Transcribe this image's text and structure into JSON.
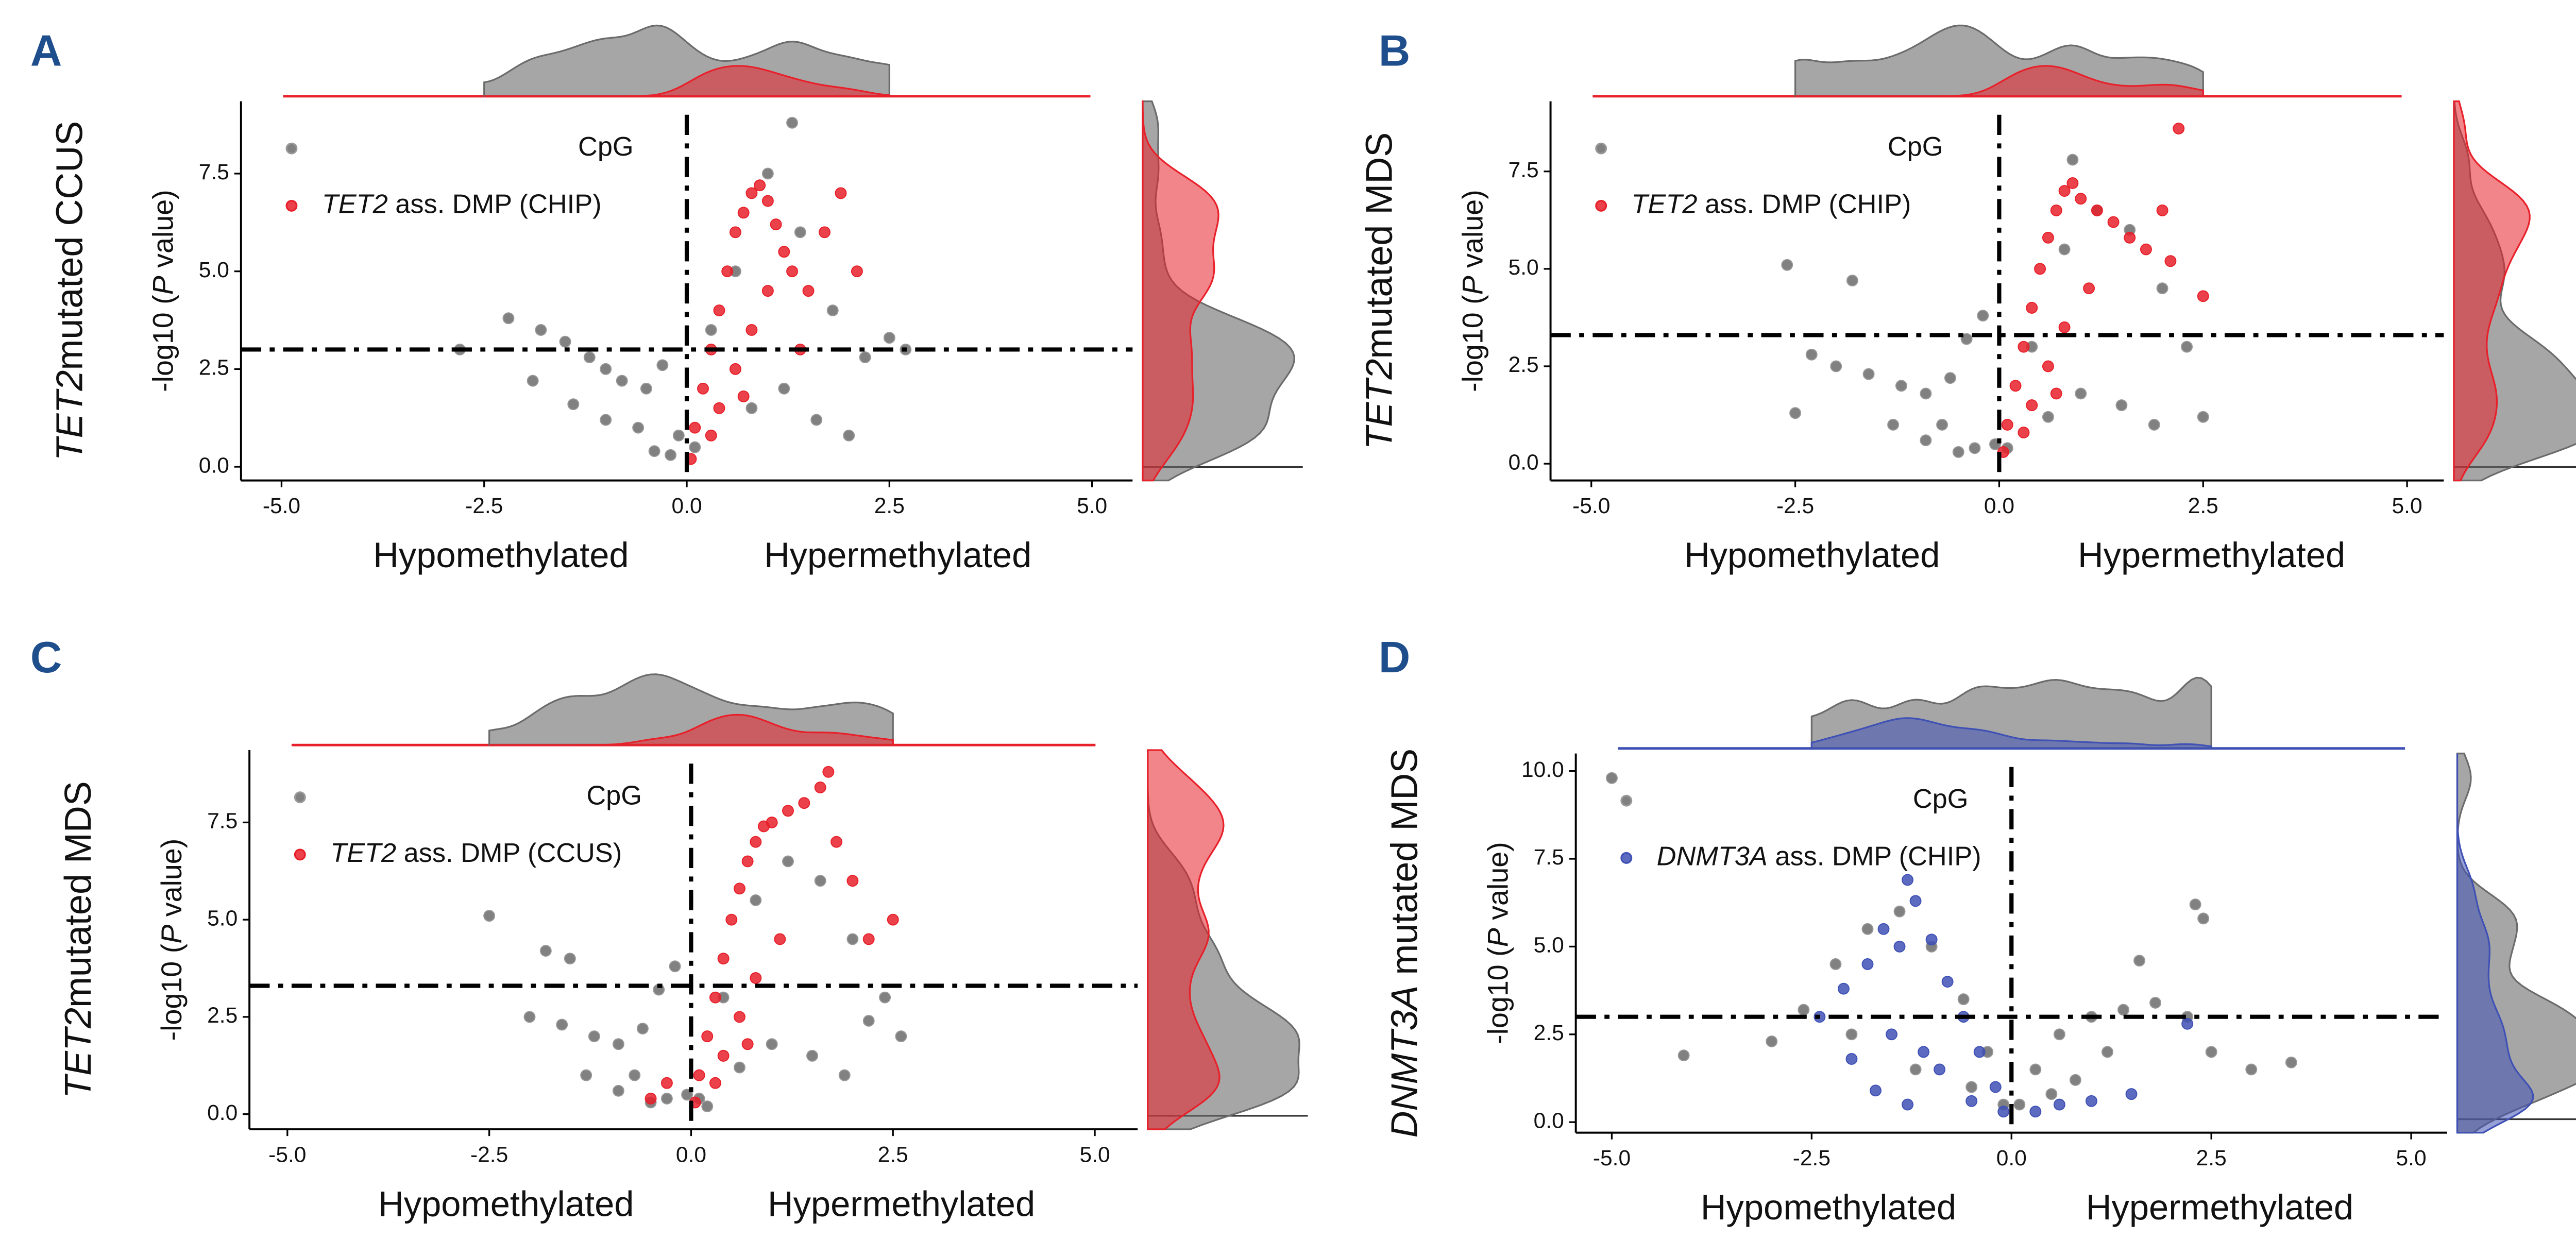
{
  "chart_data": [
    {
      "type": "scatter",
      "panel": "A",
      "row_label": "TET2mutated CCUS",
      "ylabel": "-log10 (P value)",
      "xlabel_left": "Hypomethylated",
      "xlabel_right": "Hypermethylated",
      "xlim": [
        -5.5,
        5.5
      ],
      "ylim": [
        -0.35,
        9.35
      ],
      "xticks": [
        {
          "value": -5,
          "label": "-5.0"
        },
        {
          "value": -2.5,
          "label": "-2.5"
        },
        {
          "value": 0,
          "label": "0.0"
        },
        {
          "value": 2.5,
          "label": "2.5"
        },
        {
          "value": 5,
          "label": "5.0"
        }
      ],
      "yticks": [
        {
          "value": 0,
          "label": "0.0"
        },
        {
          "value": 2.5,
          "label": "2.5"
        },
        {
          "value": 5,
          "label": "5.0"
        },
        {
          "value": 7.5,
          "label": "7.5"
        }
      ],
      "hline": 3,
      "vline": 0,
      "series": [
        {
          "name": "CpG",
          "color": "#6b6b6b",
          "x": [
            -2.2,
            -1.8,
            -1.5,
            -1.2,
            -1.0,
            -0.8,
            -0.5,
            -0.3,
            -0.1,
            0.1,
            0.3,
            0.6,
            1.0,
            1.4,
            1.8,
            2.2,
            2.5,
            -1.9,
            -2.8,
            -0.6,
            -0.2,
            0.8,
            1.2,
            1.6,
            2.0,
            -1.4,
            -1.0,
            -0.4,
            2.7,
            1.3
          ],
          "values": [
            3.8,
            3.5,
            3.2,
            2.8,
            2.5,
            2.2,
            2.0,
            2.6,
            0.8,
            0.5,
            3.5,
            5.0,
            7.5,
            6.0,
            4.0,
            2.8,
            3.3,
            2.2,
            3.0,
            1.0,
            0.3,
            1.5,
            2.0,
            1.2,
            0.8,
            1.6,
            1.2,
            0.4,
            3.0,
            8.8
          ]
        },
        {
          "name": "TET2 ass. DMP (CHIP)",
          "color": "#e8202a",
          "x": [
            0.05,
            0.1,
            0.2,
            0.3,
            0.4,
            0.5,
            0.6,
            0.7,
            0.8,
            0.9,
            1.0,
            1.1,
            1.2,
            1.3,
            1.5,
            1.7,
            1.9,
            2.1,
            0.4,
            0.6,
            0.8,
            1.0,
            1.4,
            0.3,
            0.7
          ],
          "values": [
            0.2,
            1.0,
            2.0,
            3.0,
            4.0,
            5.0,
            6.0,
            6.5,
            7.0,
            7.2,
            6.8,
            6.2,
            5.5,
            5.0,
            4.5,
            6.0,
            7.0,
            5.0,
            1.5,
            2.5,
            3.5,
            4.5,
            3.0,
            0.8,
            1.8
          ]
        }
      ]
    },
    {
      "type": "scatter",
      "panel": "B",
      "row_label": "TET2mutated MDS",
      "ylabel": "-log10 (P value)",
      "xlabel_left": "Hypomethylated",
      "xlabel_right": "Hypermethylated",
      "xlim": [
        -5.5,
        5.45
      ],
      "ylim": [
        -0.43,
        9.3
      ],
      "xticks": [
        {
          "value": -5,
          "label": "-5.0"
        },
        {
          "value": -2.5,
          "label": "-2.5"
        },
        {
          "value": 0,
          "label": "0.0"
        },
        {
          "value": 2.5,
          "label": "2.5"
        },
        {
          "value": 5,
          "label": "5.0"
        }
      ],
      "yticks": [
        {
          "value": 0,
          "label": "0.0"
        },
        {
          "value": 2.5,
          "label": "2.5"
        },
        {
          "value": 5,
          "label": "5.0"
        },
        {
          "value": 7.5,
          "label": "7.5"
        }
      ],
      "hline": 3.3,
      "vline": 0,
      "series": [
        {
          "name": "CpG",
          "color": "#6b6b6b",
          "x": [
            -2.3,
            -2.0,
            -1.6,
            -1.2,
            -0.9,
            -0.6,
            -0.4,
            -0.2,
            -0.05,
            0.1,
            0.4,
            0.8,
            1.2,
            1.6,
            2.0,
            2.3,
            -2.6,
            -1.8,
            -0.7,
            -0.3,
            0.6,
            1.0,
            1.5,
            1.9,
            2.5,
            -1.3,
            -0.9,
            -2.5,
            -0.5,
            0.9
          ],
          "values": [
            2.8,
            2.5,
            2.3,
            2.0,
            1.8,
            2.2,
            3.2,
            3.8,
            0.5,
            0.4,
            3.0,
            5.5,
            6.5,
            6.0,
            4.5,
            3.0,
            5.1,
            4.7,
            1.0,
            0.4,
            1.2,
            1.8,
            1.5,
            1.0,
            1.2,
            1.0,
            0.6,
            1.3,
            0.3,
            7.8
          ]
        },
        {
          "name": "TET2 ass. DMP (CHIP)",
          "color": "#e8202a",
          "x": [
            0.05,
            0.1,
            0.2,
            0.3,
            0.4,
            0.5,
            0.6,
            0.7,
            0.8,
            0.9,
            1.0,
            1.2,
            1.4,
            1.6,
            1.8,
            2.0,
            2.2,
            2.5,
            0.4,
            0.6,
            0.8,
            1.1,
            2.1,
            0.3,
            0.7
          ],
          "values": [
            0.3,
            1.0,
            2.0,
            3.0,
            4.0,
            5.0,
            5.8,
            6.5,
            7.0,
            7.2,
            6.8,
            6.5,
            6.2,
            5.8,
            5.5,
            6.5,
            8.6,
            4.3,
            1.5,
            2.5,
            3.5,
            4.5,
            5.2,
            0.8,
            1.8
          ]
        }
      ]
    },
    {
      "type": "scatter",
      "panel": "C",
      "row_label": "TET2mutated MDS",
      "ylabel": "-log10 (P value)",
      "xlabel_left": "Hypomethylated",
      "xlabel_right": "Hypermethylated",
      "xlim": [
        -5.47,
        5.53
      ],
      "ylim": [
        -0.39,
        9.36
      ],
      "xticks": [
        {
          "value": -5,
          "label": "-5.0"
        },
        {
          "value": -2.5,
          "label": "-2.5"
        },
        {
          "value": 0,
          "label": "0.0"
        },
        {
          "value": 2.5,
          "label": "2.5"
        },
        {
          "value": 5,
          "label": "5.0"
        }
      ],
      "yticks": [
        {
          "value": 0,
          "label": "0.0"
        },
        {
          "value": 2.5,
          "label": "2.5"
        },
        {
          "value": 5,
          "label": "5.0"
        },
        {
          "value": 7.5,
          "label": "7.5"
        }
      ],
      "hline": 3.3,
      "vline": 0,
      "series": [
        {
          "name": "CpG",
          "color": "#6b6b6b",
          "x": [
            -2.5,
            -2.0,
            -1.6,
            -1.2,
            -0.9,
            -0.6,
            -0.4,
            -0.2,
            -0.05,
            0.1,
            0.4,
            0.8,
            1.2,
            1.6,
            2.0,
            2.4,
            -1.8,
            -0.7,
            -0.3,
            0.6,
            1.0,
            1.5,
            1.9,
            2.6,
            -1.3,
            -0.9,
            -0.5,
            -1.5,
            2.2,
            0.2
          ],
          "values": [
            5.1,
            2.5,
            2.3,
            2.0,
            1.8,
            2.2,
            3.2,
            3.8,
            0.5,
            0.4,
            3.0,
            5.5,
            6.5,
            6.0,
            4.5,
            3.0,
            4.2,
            1.0,
            0.4,
            1.2,
            1.8,
            1.5,
            1.0,
            2.0,
            1.0,
            0.6,
            0.3,
            4.0,
            2.4,
            0.2
          ]
        },
        {
          "name": "TET2 ass. DMP (CCUS)",
          "color": "#e8202a",
          "x": [
            0.05,
            0.1,
            0.2,
            0.3,
            0.4,
            0.5,
            0.6,
            0.7,
            0.8,
            0.9,
            1.0,
            1.2,
            1.4,
            1.6,
            1.8,
            2.0,
            2.2,
            2.5,
            0.4,
            0.6,
            0.8,
            1.1,
            1.7,
            0.3,
            0.7,
            -0.5,
            -0.3
          ],
          "values": [
            0.3,
            1.0,
            2.0,
            3.0,
            4.0,
            5.0,
            5.8,
            6.5,
            7.0,
            7.4,
            7.5,
            7.8,
            8.0,
            8.4,
            7.0,
            6.0,
            4.5,
            5.0,
            1.5,
            2.5,
            3.5,
            4.5,
            8.8,
            0.8,
            1.8,
            0.4,
            0.8
          ]
        }
      ]
    },
    {
      "type": "scatter",
      "panel": "D",
      "row_label": "DNMT3A mutated MDS",
      "ylabel": "-log10 (P value)",
      "xlabel_left": "Hypomethylated",
      "xlabel_right": "Hypermethylated",
      "xlim": [
        -5.45,
        5.45
      ],
      "ylim": [
        -0.3,
        10.5
      ],
      "xticks": [
        {
          "value": -5,
          "label": "-5.0"
        },
        {
          "value": -2.5,
          "label": "-2.5"
        },
        {
          "value": 0,
          "label": "0.0"
        },
        {
          "value": 2.5,
          "label": "2.5"
        },
        {
          "value": 5,
          "label": "5.0"
        }
      ],
      "yticks": [
        {
          "value": 0,
          "label": "0.0"
        },
        {
          "value": 2.5,
          "label": "2.5"
        },
        {
          "value": 5,
          "label": "5.0"
        },
        {
          "value": 7.5,
          "label": "7.5"
        },
        {
          "value": 10,
          "label": "10.0"
        }
      ],
      "hline": 3,
      "vline": 0,
      "series": [
        {
          "name": "CpG",
          "color": "#6b6b6b",
          "x": [
            -5.0,
            -4.1,
            -3.0,
            -2.6,
            -2.2,
            -1.8,
            -1.4,
            -1.0,
            -0.6,
            -0.3,
            -0.1,
            0.1,
            0.3,
            0.6,
            1.0,
            1.4,
            1.8,
            2.2,
            2.5,
            3.0,
            3.5,
            2.3,
            1.6,
            -2.0,
            -1.2,
            0.8,
            1.2,
            2.4,
            -0.5,
            0.5
          ],
          "values": [
            9.8,
            1.9,
            2.3,
            3.2,
            4.5,
            5.5,
            6.0,
            5.0,
            3.5,
            2.0,
            0.5,
            0.5,
            1.5,
            2.5,
            3.0,
            3.2,
            3.4,
            3.0,
            2.0,
            1.5,
            1.7,
            6.2,
            4.6,
            2.5,
            1.5,
            1.2,
            2.0,
            5.8,
            1.0,
            0.8
          ]
        },
        {
          "name": "DNMT3A ass. DMP (CHIP)",
          "color": "#3f51b5",
          "x": [
            -2.4,
            -2.1,
            -1.8,
            -1.6,
            -1.4,
            -1.3,
            -1.2,
            -1.0,
            -0.8,
            -0.6,
            -0.4,
            -0.2,
            -0.1,
            -1.5,
            -1.1,
            -0.9,
            -2.0,
            -1.7,
            0.3,
            0.6,
            1.0,
            1.5,
            2.2,
            -0.5,
            -1.3
          ],
          "values": [
            3.0,
            3.8,
            4.5,
            5.5,
            5.0,
            6.9,
            6.3,
            5.2,
            4.0,
            3.0,
            2.0,
            1.0,
            0.3,
            2.5,
            2.0,
            1.5,
            1.8,
            0.9,
            0.3,
            0.5,
            0.6,
            0.8,
            2.8,
            0.6,
            0.5
          ]
        }
      ]
    }
  ]
}
